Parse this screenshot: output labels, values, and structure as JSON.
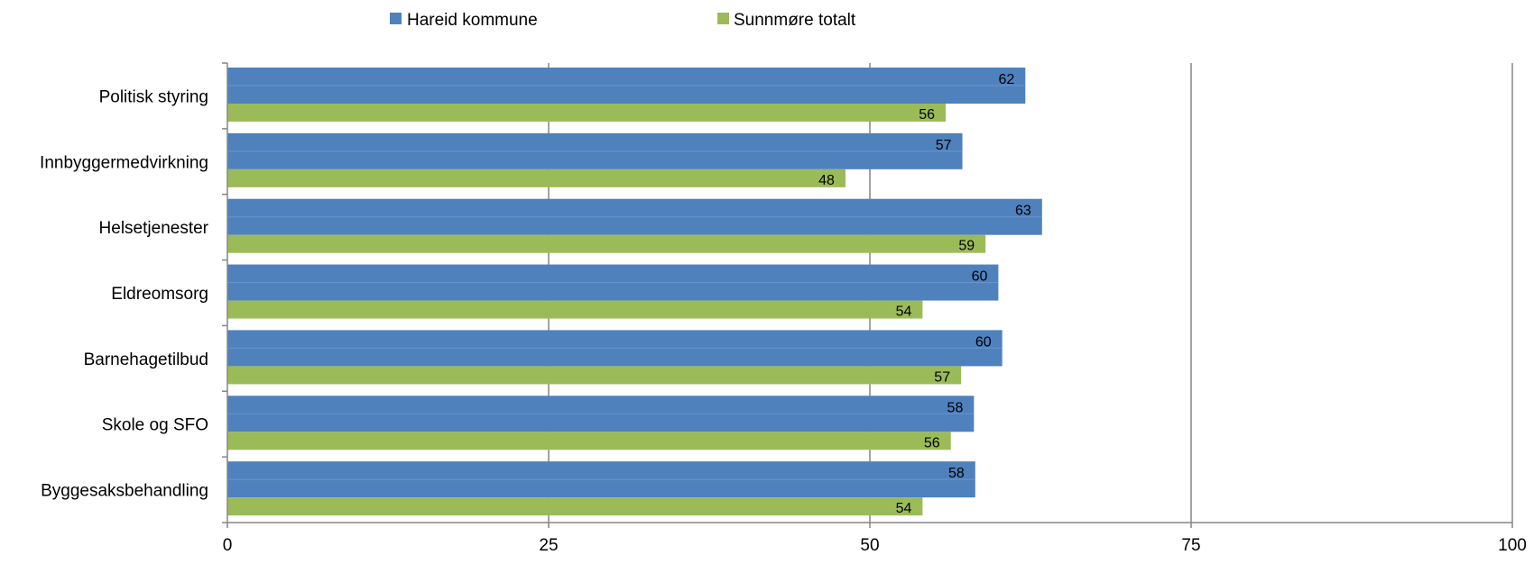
{
  "chart_data": {
    "type": "bar",
    "orientation": "horizontal",
    "categories": [
      "Politisk styring",
      "Innbyggermedvirkning",
      "Helsetjenester",
      "Eldreomsorg",
      "Barnehagetilbud",
      "Skole og SFO",
      "Byggesaksbehandling"
    ],
    "series": [
      {
        "name": "Hareid kommune",
        "color": "#4F81BD",
        "values": [
          62.1,
          57.2,
          63.4,
          60.0,
          60.3,
          58.1,
          58.2
        ],
        "labels": [
          "62",
          "57",
          "63",
          "60",
          "60",
          "58",
          "58"
        ]
      },
      {
        "name": "Sunnmøre totalt",
        "color": "#9BBB59",
        "values": [
          55.9,
          48.1,
          59.0,
          54.1,
          57.1,
          56.3,
          54.1
        ],
        "labels": [
          "56",
          "48",
          "59",
          "54",
          "57",
          "56",
          "54"
        ]
      }
    ],
    "x_ticks": [
      "0",
      "25",
      "50",
      "75",
      "100"
    ],
    "xlim": [
      0,
      100
    ],
    "grid": true,
    "legend_position": "top"
  }
}
